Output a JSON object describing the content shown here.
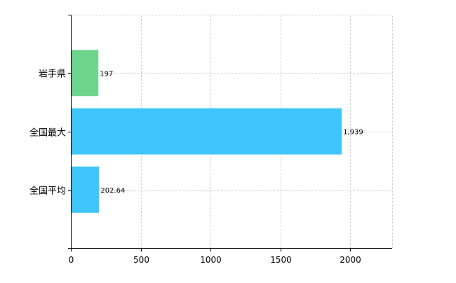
{
  "chart_data": {
    "type": "bar",
    "orientation": "horizontal",
    "categories": [
      "岩手県",
      "全国最大",
      "全国平均"
    ],
    "values": [
      197,
      1939,
      202.64
    ],
    "value_labels": [
      "197",
      "1,939",
      "202.64"
    ],
    "bar_colors": [
      "#6fd48c",
      "#3ec6fb",
      "#3ec6fb"
    ],
    "title": "",
    "xlabel": "",
    "ylabel": "",
    "xlim": [
      0,
      2300
    ],
    "xticks": [
      0,
      500,
      1000,
      1500,
      2000
    ],
    "xtick_labels": [
      "0",
      "500",
      "1000",
      "1500",
      "2000"
    ],
    "grid": true,
    "grid_style": "dotted",
    "grid_color": "#c8c8c8",
    "axis_color": "#000000",
    "legend": "none"
  }
}
